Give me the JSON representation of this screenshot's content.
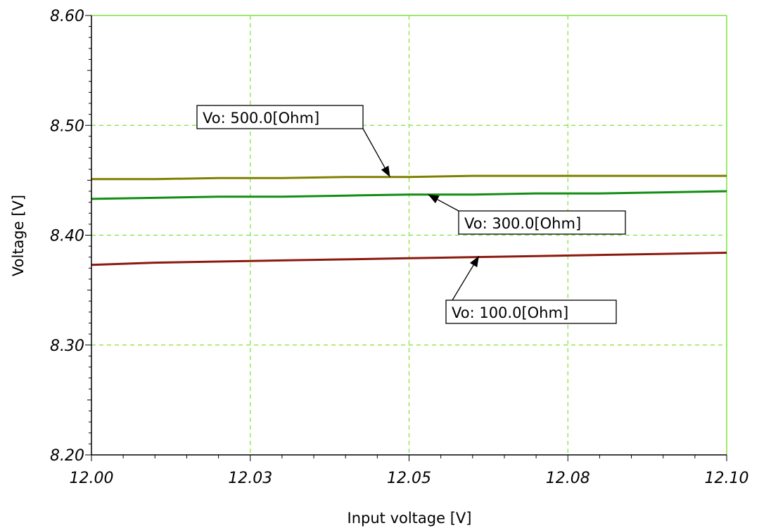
{
  "chart_data": {
    "type": "line",
    "title": "",
    "xlabel": "Input voltage [V]",
    "ylabel": "Voltage [V]",
    "xlim": [
      12.0,
      12.1
    ],
    "ylim": [
      8.2,
      8.6
    ],
    "x_ticks": [
      12.0,
      12.025,
      12.05,
      12.075,
      12.1
    ],
    "x_tick_labels": [
      "12.00",
      "12.03",
      "12.05",
      "12.08",
      "12.10"
    ],
    "y_ticks": [
      8.2,
      8.3,
      8.4,
      8.5,
      8.6
    ],
    "y_tick_labels": [
      "8.20",
      "8.30",
      "8.40",
      "8.50",
      "8.60"
    ],
    "grid": true,
    "colors": {
      "grid": "#7fe23a",
      "axis": "#000000",
      "border": "#7fe23a"
    },
    "series": [
      {
        "name": "Vo: 500.0[Ohm]",
        "color": "#808000",
        "x": [
          12.0,
          12.01,
          12.02,
          12.03,
          12.04,
          12.05,
          12.06,
          12.07,
          12.08,
          12.09,
          12.1
        ],
        "y": [
          8.451,
          8.451,
          8.452,
          8.452,
          8.453,
          8.453,
          8.454,
          8.454,
          8.454,
          8.454,
          8.454
        ]
      },
      {
        "name": "Vo: 300.0[Ohm]",
        "color": "#138d13",
        "x": [
          12.0,
          12.01,
          12.02,
          12.03,
          12.04,
          12.05,
          12.06,
          12.07,
          12.08,
          12.09,
          12.1
        ],
        "y": [
          8.433,
          8.434,
          8.435,
          8.435,
          8.436,
          8.437,
          8.437,
          8.438,
          8.438,
          8.439,
          8.44
        ]
      },
      {
        "name": "Vo: 100.0[Ohm]",
        "color": "#8b1a0e",
        "x": [
          12.0,
          12.01,
          12.02,
          12.03,
          12.04,
          12.05,
          12.06,
          12.07,
          12.08,
          12.09,
          12.1
        ],
        "y": [
          8.373,
          8.375,
          8.376,
          8.377,
          8.378,
          8.379,
          8.38,
          8.381,
          8.382,
          8.383,
          8.384
        ]
      }
    ],
    "annotations": [
      {
        "text": "Vo: 500.0[Ohm]",
        "target_x": 12.047,
        "target_y": 8.453
      },
      {
        "text": "Vo: 300.0[Ohm]",
        "target_x": 12.053,
        "target_y": 8.437
      },
      {
        "text": "Vo: 100.0[Ohm]",
        "target_x": 12.061,
        "target_y": 8.381
      }
    ]
  }
}
